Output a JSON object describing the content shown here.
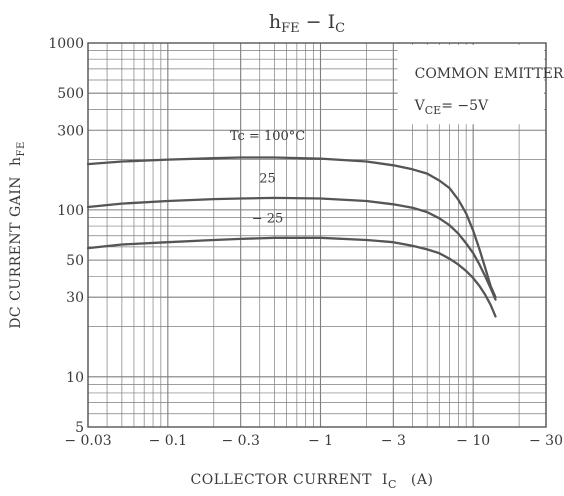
{
  "chart_data": {
    "type": "line",
    "title": {
      "main": "h",
      "main_sub": "FE",
      "sep": " − ",
      "x_main": "I",
      "x_sub": "C"
    },
    "xlabel": {
      "prefix": "COLLECTOR CURRENT",
      "main": "I",
      "sub": "C",
      "unit": "(A)"
    },
    "ylabel": {
      "prefix": "DC CURRENT GAIN",
      "main": "h",
      "sub": "FE"
    },
    "x_scale": "log",
    "y_scale": "log",
    "xlim": [
      -0.03,
      -30
    ],
    "ylim": [
      5,
      1000
    ],
    "grid": true,
    "x_ticks": [
      {
        "value": -0.03,
        "label": "− 0.03"
      },
      {
        "value": -0.1,
        "label": "− 0.1"
      },
      {
        "value": -0.3,
        "label": "− 0.3"
      },
      {
        "value": -1,
        "label": "− 1"
      },
      {
        "value": -3,
        "label": "− 3"
      },
      {
        "value": -10,
        "label": "− 10"
      },
      {
        "value": -30,
        "label": "− 30"
      }
    ],
    "y_ticks": [
      {
        "value": 5,
        "label": "5"
      },
      {
        "value": 10,
        "label": "10"
      },
      {
        "value": 30,
        "label": "30"
      },
      {
        "value": 50,
        "label": "50"
      },
      {
        "value": 100,
        "label": "100"
      },
      {
        "value": 300,
        "label": "300"
      },
      {
        "value": 500,
        "label": "500"
      },
      {
        "value": 1000,
        "label": "1000"
      }
    ],
    "annotation": {
      "line1": "COMMON EMITTER",
      "line2_main": "V",
      "line2_sub": "CE",
      "line2_rest": "= −5V"
    },
    "series": [
      {
        "name": "Tc = 100°C",
        "x": [
          -0.03,
          -0.05,
          -0.1,
          -0.2,
          -0.3,
          -0.5,
          -1,
          -2,
          -3,
          -4,
          -5,
          -6,
          -7,
          -8,
          -9,
          -10,
          -11,
          -12,
          -13,
          -14
        ],
        "y": [
          188,
          195,
          200,
          204,
          206,
          206,
          203,
          195,
          185,
          175,
          165,
          150,
          135,
          115,
          95,
          75,
          58,
          45,
          35,
          30
        ]
      },
      {
        "name": "25",
        "x": [
          -0.03,
          -0.05,
          -0.1,
          -0.2,
          -0.3,
          -0.5,
          -1,
          -2,
          -3,
          -4,
          -5,
          -6,
          -7,
          -8,
          -9,
          -10,
          -11,
          -12,
          -13,
          -14
        ],
        "y": [
          104,
          109,
          113,
          116,
          117,
          118,
          117,
          113,
          108,
          103,
          97,
          89,
          81,
          72,
          63,
          55,
          47,
          40,
          34,
          29
        ]
      },
      {
        "name": "− 25",
        "x": [
          -0.03,
          -0.05,
          -0.1,
          -0.2,
          -0.3,
          -0.5,
          -1,
          -2,
          -3,
          -4,
          -5,
          -6,
          -7,
          -8,
          -9,
          -10,
          -11,
          -12,
          -13,
          -14
        ],
        "y": [
          59,
          62,
          64,
          66,
          67,
          68,
          68,
          66,
          64,
          61,
          58,
          55,
          51,
          47,
          43,
          39,
          35,
          31,
          27,
          23
        ]
      }
    ]
  },
  "colors": {
    "grid": "#7e7e7e",
    "line": "#555555",
    "text": "#3a3a3a",
    "background": "#ffffff"
  }
}
